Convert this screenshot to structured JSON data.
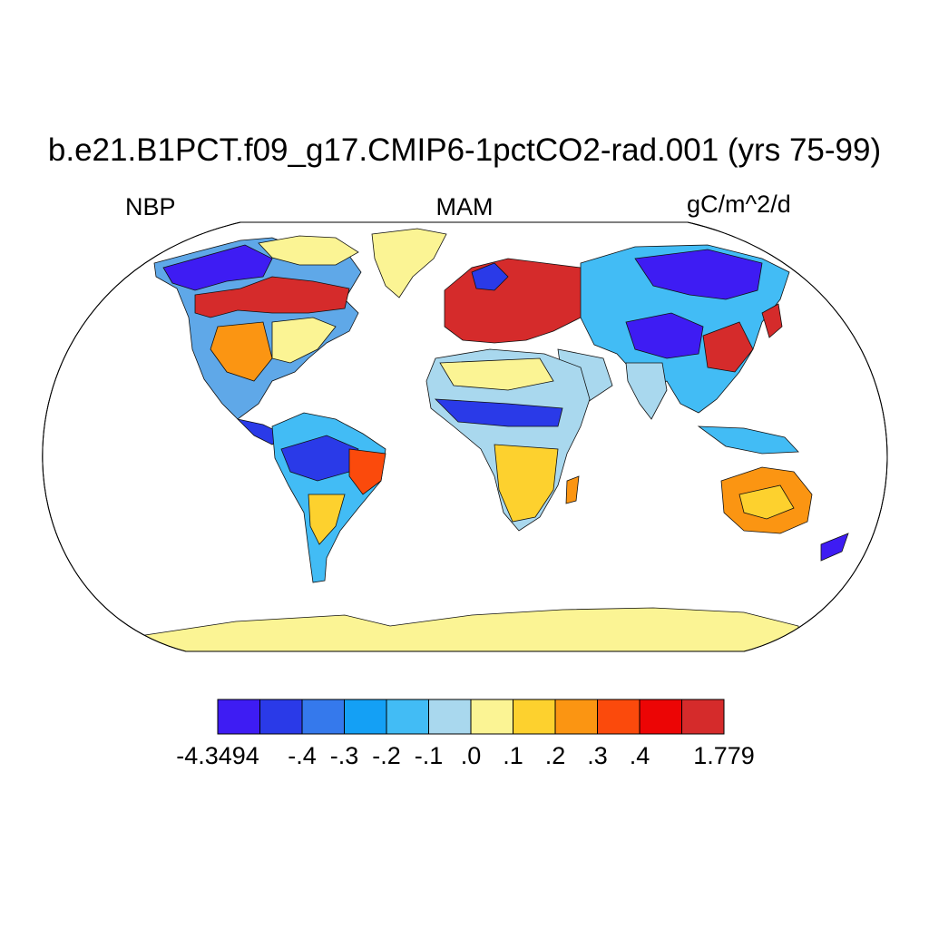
{
  "title": "b.e21.B1PCT.f09_g17.CMIP6-1pctCO2-rad.001 (yrs 75-99)",
  "left_label": "NBP",
  "center_label": "MAM",
  "right_label": "gC/m^2/d",
  "colorbar": {
    "colors": [
      "#3e1cf3",
      "#2a3ae8",
      "#3579ec",
      "#14a0f5",
      "#42bcf5",
      "#a9d8ee",
      "#fbf494",
      "#fdd12e",
      "#fb9512",
      "#fb4a0c",
      "#ec0505",
      "#d52b2b"
    ],
    "tick_labels": [
      "-4.3494",
      "-.4",
      "-.3",
      "-.2",
      "-.1",
      ".0",
      ".1",
      ".2",
      ".3",
      ".4",
      "1.779"
    ]
  }
}
